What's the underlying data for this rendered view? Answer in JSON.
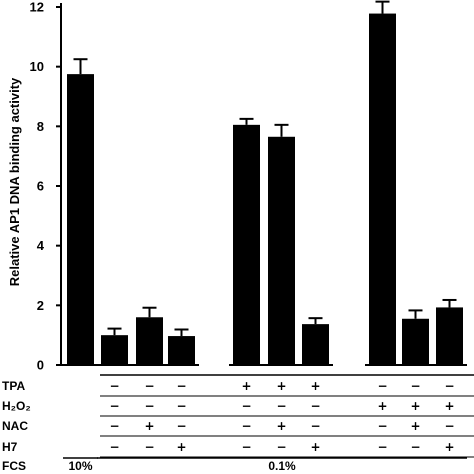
{
  "chart_data": {
    "type": "bar",
    "ylabel": "Relative AP1 DNA binding activity",
    "ylim": [
      0,
      12
    ],
    "yticks": [
      "0",
      "2",
      "4",
      "6",
      "8",
      "10",
      "12"
    ],
    "error_bars": true,
    "bar_color": "#000000",
    "values": [
      9.75,
      1.0,
      1.6,
      0.97,
      8.05,
      7.65,
      1.37,
      11.78,
      1.55,
      1.93
    ],
    "errors": [
      0.5,
      0.22,
      0.32,
      0.22,
      0.2,
      0.4,
      0.2,
      0.4,
      0.28,
      0.25
    ],
    "groups": [
      [
        0,
        1,
        2,
        3
      ],
      [
        4,
        5,
        6
      ],
      [
        7,
        8,
        9
      ]
    ],
    "conditions": {
      "rows": [
        {
          "label": "TPA",
          "marks": [
            "",
            "−",
            "−",
            "−",
            "+",
            "+",
            "+",
            "−",
            "−",
            "−"
          ]
        },
        {
          "label": "H₂O₂",
          "marks": [
            "",
            "−",
            "−",
            "−",
            "−",
            "−",
            "−",
            "+",
            "+",
            "+"
          ]
        },
        {
          "label": "NAC",
          "marks": [
            "",
            "−",
            "+",
            "−",
            "−",
            "+",
            "−",
            "−",
            "+",
            "−"
          ]
        },
        {
          "label": "H7",
          "marks": [
            "",
            "−",
            "−",
            "+",
            "−",
            "−",
            "+",
            "−",
            "−",
            "+"
          ]
        }
      ],
      "fcs_label": "FCS",
      "fcs_values": [
        {
          "text": "10%",
          "bars": [
            0
          ]
        },
        {
          "text": "0.1%",
          "bars": [
            1,
            9
          ]
        }
      ]
    }
  }
}
